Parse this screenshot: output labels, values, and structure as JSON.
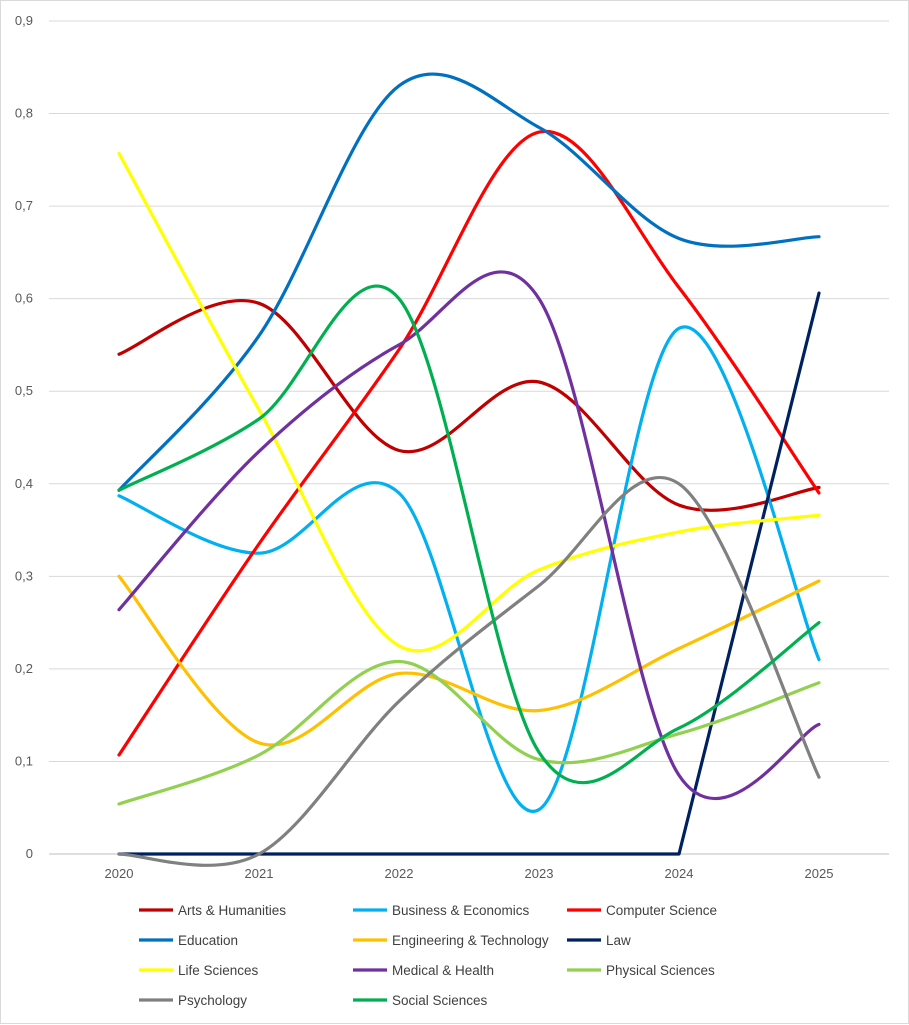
{
  "chart_data": {
    "type": "line",
    "title": "",
    "xlabel": "",
    "ylabel": "",
    "x": [
      "2020",
      "2021",
      "2022",
      "2023",
      "2024",
      "2025"
    ],
    "ylim": [
      0,
      0.9
    ],
    "yticks": [
      "0",
      "0,1",
      "0,2",
      "0,3",
      "0,4",
      "0,5",
      "0,6",
      "0,7",
      "0,8",
      "0,9"
    ],
    "grid": true,
    "smooth": true,
    "legend_position": "bottom",
    "series": [
      {
        "name": "Arts & Humanities",
        "color": "#C00000",
        "values": [
          0.54,
          0.595,
          0.436,
          0.51,
          0.377,
          0.396
        ]
      },
      {
        "name": "Business & Economics",
        "color": "#00B0F0",
        "values": [
          0.387,
          0.325,
          0.39,
          0.048,
          0.568,
          0.21
        ]
      },
      {
        "name": "Computer Science",
        "color": "#FF0000",
        "values": [
          0.107,
          0.335,
          0.545,
          0.78,
          0.612,
          0.39
        ]
      },
      {
        "name": "Education",
        "color": "#0070C0",
        "values": [
          0.393,
          0.56,
          0.83,
          0.785,
          0.665,
          0.667
        ]
      },
      {
        "name": "Engineering & Technology",
        "color": "#FFC000",
        "values": [
          0.3,
          0.12,
          0.195,
          0.155,
          0.222,
          0.295
        ]
      },
      {
        "name": "Law",
        "color": "#002060",
        "values": [
          0,
          0,
          0,
          0,
          0,
          0.606
        ]
      },
      {
        "name": "Life Sciences",
        "color": "#FFFF00",
        "values": [
          0.757,
          0.48,
          0.225,
          0.307,
          0.348,
          0.366
        ]
      },
      {
        "name": "Medical & Health",
        "color": "#7030A0",
        "values": [
          0.264,
          0.435,
          0.55,
          0.6,
          0.085,
          0.14
        ]
      },
      {
        "name": "Physical Sciences",
        "color": "#92D050",
        "values": [
          0.054,
          0.107,
          0.208,
          0.102,
          0.13,
          0.185
        ]
      },
      {
        "name": "Psychology",
        "color": "#808080",
        "values": [
          0,
          0,
          0.165,
          0.29,
          0.4,
          0.083
        ]
      },
      {
        "name": "Social Sciences",
        "color": "#00B050",
        "values": [
          0.393,
          0.47,
          0.6,
          0.11,
          0.136,
          0.25
        ]
      }
    ]
  }
}
